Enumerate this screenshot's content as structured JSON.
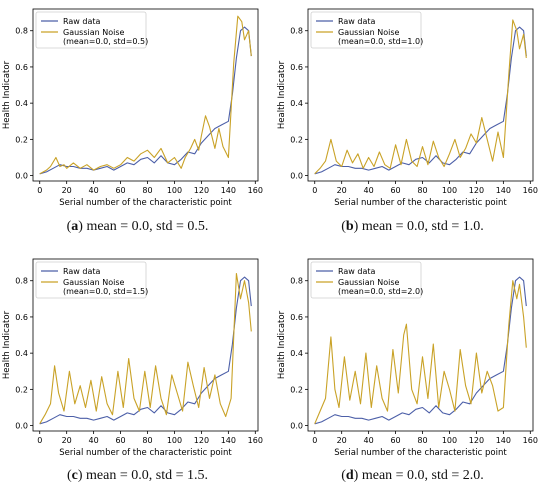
{
  "panels": [
    {
      "label": "a",
      "caption": "mean = 0.0, std = 0.5."
    },
    {
      "label": "b",
      "caption": "mean = 0.0, std = 1.0."
    },
    {
      "label": "c",
      "caption": "mean = 0.0, std = 1.5."
    },
    {
      "label": "d",
      "caption": "mean = 0.0, std = 2.0."
    }
  ],
  "chart_data": [
    {
      "type": "line",
      "xlabel": "Serial number of the characteristic point",
      "ylabel": "Health Indicator",
      "xlim": [
        -5,
        162
      ],
      "ylim": [
        -0.03,
        0.92
      ],
      "xticks": [
        0,
        20,
        40,
        60,
        80,
        100,
        120,
        140,
        160
      ],
      "yticks": [
        0.0,
        0.2,
        0.4,
        0.6,
        0.8
      ],
      "legend": "top-left",
      "series": [
        {
          "name": "Raw data",
          "color": "#4c5fa8",
          "x": [
            0,
            5,
            10,
            15,
            20,
            25,
            30,
            35,
            40,
            45,
            50,
            55,
            60,
            65,
            70,
            75,
            80,
            85,
            90,
            95,
            100,
            105,
            110,
            115,
            120,
            125,
            130,
            135,
            140,
            143,
            146,
            149,
            152,
            155,
            157
          ],
          "y": [
            0.01,
            0.02,
            0.04,
            0.06,
            0.05,
            0.05,
            0.04,
            0.04,
            0.03,
            0.04,
            0.05,
            0.03,
            0.05,
            0.07,
            0.06,
            0.09,
            0.1,
            0.07,
            0.11,
            0.07,
            0.06,
            0.09,
            0.13,
            0.12,
            0.18,
            0.22,
            0.26,
            0.28,
            0.3,
            0.45,
            0.65,
            0.8,
            0.82,
            0.8,
            0.66
          ]
        },
        {
          "name": "Gaussian Noise",
          "label2": "(mean=0.0, std=0.5)",
          "color": "#c9a227",
          "x": [
            0,
            5,
            8,
            12,
            15,
            18,
            20,
            25,
            30,
            35,
            40,
            45,
            50,
            55,
            60,
            65,
            70,
            75,
            80,
            85,
            90,
            95,
            100,
            105,
            108,
            112,
            115,
            118,
            120,
            123,
            126,
            130,
            133,
            136,
            140,
            144,
            147,
            150,
            152,
            155,
            157
          ],
          "y": [
            0.01,
            0.03,
            0.05,
            0.1,
            0.05,
            0.06,
            0.04,
            0.07,
            0.04,
            0.06,
            0.03,
            0.05,
            0.06,
            0.04,
            0.06,
            0.1,
            0.08,
            0.12,
            0.14,
            0.1,
            0.15,
            0.07,
            0.1,
            0.04,
            0.1,
            0.15,
            0.2,
            0.14,
            0.22,
            0.33,
            0.27,
            0.15,
            0.26,
            0.16,
            0.1,
            0.62,
            0.88,
            0.85,
            0.75,
            0.8,
            0.66
          ]
        }
      ]
    },
    {
      "type": "line",
      "xlabel": "Serial number of the characteristic point",
      "ylabel": "Health Indicator",
      "xlim": [
        -5,
        162
      ],
      "ylim": [
        -0.03,
        0.92
      ],
      "xticks": [
        0,
        20,
        40,
        60,
        80,
        100,
        120,
        140,
        160
      ],
      "yticks": [
        0.0,
        0.2,
        0.4,
        0.6,
        0.8
      ],
      "legend": "top-left",
      "series": [
        {
          "name": "Raw data",
          "color": "#4c5fa8",
          "x": [
            0,
            5,
            10,
            15,
            20,
            25,
            30,
            35,
            40,
            45,
            50,
            55,
            60,
            65,
            70,
            75,
            80,
            85,
            90,
            95,
            100,
            105,
            110,
            115,
            120,
            125,
            130,
            135,
            140,
            143,
            146,
            149,
            152,
            155,
            157
          ],
          "y": [
            0.01,
            0.02,
            0.04,
            0.06,
            0.05,
            0.05,
            0.04,
            0.04,
            0.03,
            0.04,
            0.05,
            0.03,
            0.05,
            0.07,
            0.06,
            0.09,
            0.1,
            0.07,
            0.11,
            0.07,
            0.06,
            0.09,
            0.13,
            0.12,
            0.18,
            0.22,
            0.26,
            0.28,
            0.3,
            0.45,
            0.65,
            0.8,
            0.82,
            0.8,
            0.66
          ]
        },
        {
          "name": "Gaussian Noise",
          "label2": "(mean=0.0, std=1.0)",
          "color": "#c9a227",
          "x": [
            0,
            4,
            8,
            12,
            16,
            20,
            24,
            28,
            32,
            36,
            40,
            44,
            48,
            52,
            56,
            60,
            64,
            68,
            72,
            76,
            80,
            84,
            88,
            92,
            96,
            100,
            104,
            108,
            112,
            116,
            120,
            124,
            128,
            132,
            136,
            140,
            144,
            147,
            150,
            152,
            155,
            157
          ],
          "y": [
            0.01,
            0.04,
            0.08,
            0.2,
            0.08,
            0.05,
            0.14,
            0.07,
            0.12,
            0.04,
            0.1,
            0.05,
            0.13,
            0.06,
            0.04,
            0.17,
            0.06,
            0.2,
            0.08,
            0.05,
            0.16,
            0.06,
            0.19,
            0.1,
            0.05,
            0.12,
            0.2,
            0.1,
            0.15,
            0.23,
            0.18,
            0.32,
            0.2,
            0.08,
            0.24,
            0.1,
            0.55,
            0.86,
            0.8,
            0.7,
            0.78,
            0.65
          ]
        }
      ]
    },
    {
      "type": "line",
      "xlabel": "Serial number of the characteristic point",
      "ylabel": "Health Indicator",
      "xlim": [
        -5,
        162
      ],
      "ylim": [
        -0.03,
        0.92
      ],
      "xticks": [
        0,
        20,
        40,
        60,
        80,
        100,
        120,
        140,
        160
      ],
      "yticks": [
        0.0,
        0.2,
        0.4,
        0.6,
        0.8
      ],
      "legend": "top-left",
      "series": [
        {
          "name": "Raw data",
          "color": "#4c5fa8",
          "x": [
            0,
            5,
            10,
            15,
            20,
            25,
            30,
            35,
            40,
            45,
            50,
            55,
            60,
            65,
            70,
            75,
            80,
            85,
            90,
            95,
            100,
            105,
            110,
            115,
            120,
            125,
            130,
            135,
            140,
            143,
            146,
            149,
            152,
            155,
            157
          ],
          "y": [
            0.01,
            0.02,
            0.04,
            0.06,
            0.05,
            0.05,
            0.04,
            0.04,
            0.03,
            0.04,
            0.05,
            0.03,
            0.05,
            0.07,
            0.06,
            0.09,
            0.1,
            0.07,
            0.11,
            0.07,
            0.06,
            0.09,
            0.13,
            0.12,
            0.18,
            0.22,
            0.26,
            0.28,
            0.3,
            0.45,
            0.65,
            0.8,
            0.82,
            0.8,
            0.66
          ]
        },
        {
          "name": "Gaussian Noise",
          "label2": "(mean=0.0, std=1.5)",
          "color": "#c9a227",
          "x": [
            0,
            4,
            8,
            11,
            14,
            18,
            22,
            26,
            30,
            34,
            38,
            42,
            46,
            50,
            54,
            58,
            62,
            66,
            70,
            74,
            78,
            82,
            86,
            90,
            94,
            98,
            102,
            106,
            110,
            114,
            118,
            122,
            126,
            130,
            134,
            138,
            142,
            146,
            149,
            152,
            155,
            157
          ],
          "y": [
            0.01,
            0.06,
            0.12,
            0.33,
            0.18,
            0.08,
            0.3,
            0.12,
            0.22,
            0.1,
            0.25,
            0.08,
            0.27,
            0.12,
            0.06,
            0.3,
            0.1,
            0.37,
            0.15,
            0.08,
            0.3,
            0.1,
            0.33,
            0.15,
            0.06,
            0.28,
            0.18,
            0.08,
            0.35,
            0.22,
            0.1,
            0.32,
            0.15,
            0.28,
            0.12,
            0.05,
            0.15,
            0.84,
            0.7,
            0.8,
            0.68,
            0.52
          ]
        }
      ]
    },
    {
      "type": "line",
      "xlabel": "Serial number of the characteristic point",
      "ylabel": "Health Indicator",
      "xlim": [
        -5,
        162
      ],
      "ylim": [
        -0.03,
        0.92
      ],
      "xticks": [
        0,
        20,
        40,
        60,
        80,
        100,
        120,
        140,
        160
      ],
      "yticks": [
        0.0,
        0.2,
        0.4,
        0.6,
        0.8
      ],
      "legend": "top-left",
      "series": [
        {
          "name": "Raw data",
          "color": "#4c5fa8",
          "x": [
            0,
            5,
            10,
            15,
            20,
            25,
            30,
            35,
            40,
            45,
            50,
            55,
            60,
            65,
            70,
            75,
            80,
            85,
            90,
            95,
            100,
            105,
            110,
            115,
            120,
            125,
            130,
            135,
            140,
            143,
            146,
            149,
            152,
            155,
            157
          ],
          "y": [
            0.01,
            0.02,
            0.04,
            0.06,
            0.05,
            0.05,
            0.04,
            0.04,
            0.03,
            0.04,
            0.05,
            0.03,
            0.05,
            0.07,
            0.06,
            0.09,
            0.1,
            0.07,
            0.11,
            0.07,
            0.06,
            0.09,
            0.13,
            0.12,
            0.18,
            0.22,
            0.26,
            0.28,
            0.3,
            0.45,
            0.65,
            0.8,
            0.82,
            0.8,
            0.66
          ]
        },
        {
          "name": "Gaussian Noise",
          "label2": "(mean=0.0, std=2.0)",
          "color": "#c9a227",
          "x": [
            0,
            4,
            8,
            12,
            15,
            18,
            22,
            26,
            30,
            34,
            38,
            42,
            46,
            50,
            54,
            58,
            62,
            66,
            68,
            72,
            76,
            80,
            84,
            88,
            92,
            96,
            100,
            104,
            108,
            112,
            116,
            120,
            124,
            128,
            132,
            136,
            140,
            144,
            147,
            150,
            152,
            155,
            157
          ],
          "y": [
            0.01,
            0.08,
            0.15,
            0.49,
            0.2,
            0.1,
            0.38,
            0.14,
            0.3,
            0.12,
            0.4,
            0.1,
            0.33,
            0.15,
            0.08,
            0.42,
            0.18,
            0.5,
            0.56,
            0.2,
            0.12,
            0.38,
            0.15,
            0.45,
            0.1,
            0.3,
            0.2,
            0.08,
            0.42,
            0.22,
            0.12,
            0.4,
            0.18,
            0.3,
            0.22,
            0.08,
            0.1,
            0.55,
            0.8,
            0.7,
            0.78,
            0.6,
            0.43
          ]
        }
      ]
    }
  ]
}
